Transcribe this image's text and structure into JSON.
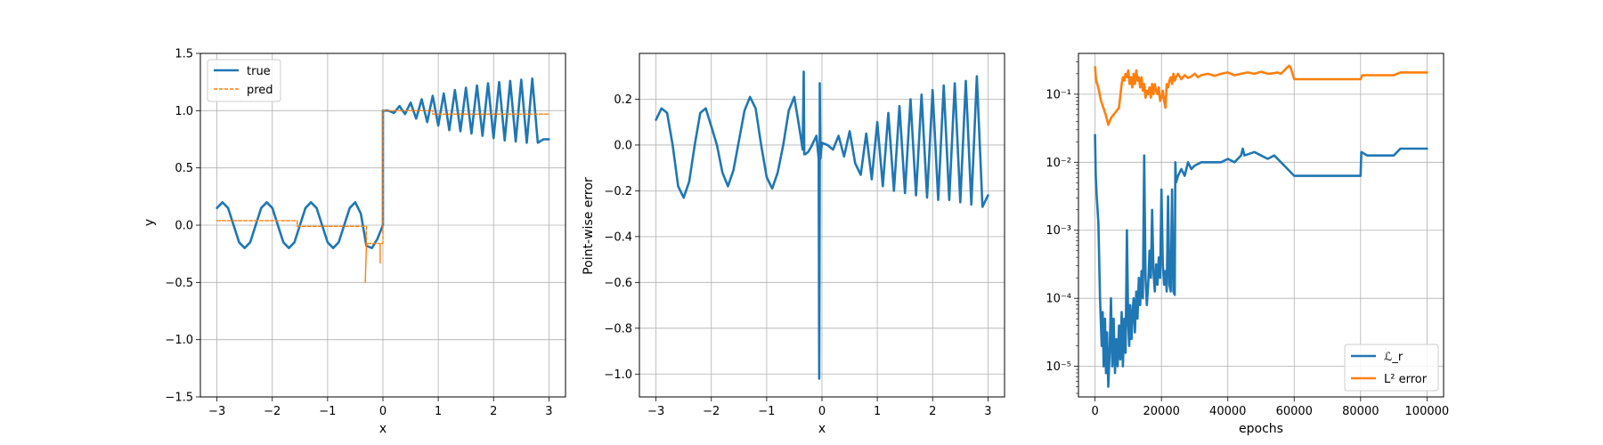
{
  "chart_data": [
    {
      "type": "line",
      "xlabel": "x",
      "ylabel": "y",
      "xlim": [
        -3.3,
        3.3
      ],
      "ylim": [
        -1.5,
        1.5
      ],
      "xticks": [
        -3,
        -2,
        -1,
        0,
        1,
        2,
        3
      ],
      "xtick_labels": [
        "−3",
        "−2",
        "−1",
        "0",
        "1",
        "2",
        "3"
      ],
      "yticks": [
        -1.5,
        -1.0,
        -0.5,
        0.0,
        0.5,
        1.0,
        1.5
      ],
      "ytick_labels": [
        "−1.5",
        "−1.0",
        "−0.5",
        "0.0",
        "0.5",
        "1.0",
        "1.5"
      ],
      "grid": true,
      "legend": "upper-left",
      "series": [
        {
          "name": "true",
          "color": "#1f77b4",
          "style": "solid",
          "x": [
            -3.0,
            -2.9,
            -2.8,
            -2.7,
            -2.6,
            -2.5,
            -2.4,
            -2.3,
            -2.2,
            -2.1,
            -2.0,
            -1.9,
            -1.8,
            -1.7,
            -1.6,
            -1.5,
            -1.4,
            -1.3,
            -1.2,
            -1.1,
            -1.0,
            -0.9,
            -0.8,
            -0.7,
            -0.6,
            -0.5,
            -0.4,
            -0.3,
            -0.2,
            -0.1,
            0.0,
            0.0,
            0.1,
            0.2,
            0.3,
            0.4,
            0.5,
            0.6,
            0.7,
            0.8,
            0.9,
            1.0,
            1.1,
            1.2,
            1.3,
            1.4,
            1.5,
            1.6,
            1.7,
            1.8,
            1.9,
            2.0,
            2.1,
            2.2,
            2.3,
            2.4,
            2.5,
            2.6,
            2.7,
            2.8,
            2.9,
            3.0
          ],
          "y": [
            0.15,
            0.2,
            0.15,
            0.0,
            -0.15,
            -0.2,
            -0.15,
            0.0,
            0.15,
            0.2,
            0.15,
            0.0,
            -0.15,
            -0.2,
            -0.15,
            0.0,
            0.15,
            0.2,
            0.15,
            0.0,
            -0.15,
            -0.2,
            -0.15,
            0.0,
            0.15,
            0.2,
            0.1,
            -0.18,
            -0.2,
            -0.12,
            0.0,
            1.0,
            1.0,
            0.98,
            1.04,
            0.97,
            1.07,
            0.93,
            1.1,
            0.9,
            1.13,
            0.87,
            1.15,
            0.83,
            1.18,
            0.82,
            1.2,
            0.8,
            1.22,
            0.78,
            1.24,
            0.76,
            1.25,
            0.74,
            1.26,
            0.73,
            1.27,
            0.72,
            1.28,
            0.72,
            0.75,
            0.75
          ]
        },
        {
          "name": "pred",
          "color": "#ff7f0e",
          "style": "dashed",
          "x": [
            -3.0,
            -1.55,
            -1.55,
            -0.3,
            -0.3,
            -0.32,
            -0.3,
            -0.3,
            -0.05,
            -0.05,
            -0.05,
            0.0,
            0.0,
            0.9,
            0.9,
            3.0
          ],
          "y": [
            0.04,
            0.04,
            -0.01,
            -0.01,
            -0.2,
            -0.5,
            -0.2,
            -0.16,
            -0.16,
            -0.33,
            -0.16,
            -0.16,
            1.0,
            1.0,
            0.97,
            0.97
          ]
        }
      ]
    },
    {
      "type": "line",
      "xlabel": "x",
      "ylabel": "Point-wise error",
      "xlim": [
        -3.3,
        3.3
      ],
      "ylim": [
        -1.1,
        0.4
      ],
      "xticks": [
        -3,
        -2,
        -1,
        0,
        1,
        2,
        3
      ],
      "xtick_labels": [
        "−3",
        "−2",
        "−1",
        "0",
        "1",
        "2",
        "3"
      ],
      "yticks": [
        -1.0,
        -0.8,
        -0.6,
        -0.4,
        -0.2,
        0.0,
        0.2
      ],
      "ytick_labels": [
        "−1.0",
        "−0.8",
        "−0.6",
        "−0.4",
        "−0.2",
        "0.0",
        "0.2"
      ],
      "grid": true,
      "series": [
        {
          "color": "#1f77b4",
          "style": "solid",
          "x": [
            -3.0,
            -2.9,
            -2.8,
            -2.7,
            -2.6,
            -2.5,
            -2.4,
            -2.3,
            -2.2,
            -2.1,
            -2.0,
            -1.9,
            -1.8,
            -1.7,
            -1.6,
            -1.5,
            -1.4,
            -1.3,
            -1.2,
            -1.1,
            -1.0,
            -0.9,
            -0.8,
            -0.7,
            -0.6,
            -0.5,
            -0.4,
            -0.35,
            -0.33,
            -0.32,
            -0.3,
            -0.25,
            -0.2,
            -0.1,
            -0.06,
            -0.05,
            -0.04,
            -0.04,
            -0.03,
            -0.03,
            0.0,
            0.1,
            0.2,
            0.3,
            0.4,
            0.5,
            0.6,
            0.7,
            0.8,
            0.9,
            1.0,
            1.1,
            1.2,
            1.3,
            1.4,
            1.5,
            1.6,
            1.7,
            1.8,
            1.9,
            2.0,
            2.1,
            2.2,
            2.3,
            2.4,
            2.5,
            2.6,
            2.7,
            2.8,
            2.9,
            3.0
          ],
          "y": [
            0.11,
            0.16,
            0.14,
            0.0,
            -0.18,
            -0.23,
            -0.16,
            0.0,
            0.14,
            0.16,
            0.08,
            0.0,
            -0.12,
            -0.18,
            -0.11,
            0.02,
            0.15,
            0.21,
            0.16,
            0.0,
            -0.14,
            -0.19,
            -0.12,
            0.0,
            0.15,
            0.21,
            0.06,
            -0.02,
            0.32,
            -0.04,
            -0.04,
            -0.03,
            -0.01,
            0.04,
            -0.06,
            -1.02,
            -0.06,
            0.27,
            0.01,
            -0.06,
            0.01,
            0.0,
            -0.02,
            0.04,
            -0.05,
            0.06,
            -0.08,
            -0.13,
            0.05,
            -0.15,
            0.1,
            -0.18,
            0.14,
            -0.2,
            0.17,
            -0.21,
            0.2,
            -0.22,
            0.22,
            -0.23,
            0.24,
            -0.24,
            0.26,
            -0.24,
            0.27,
            -0.25,
            0.28,
            -0.26,
            0.3,
            -0.27,
            -0.22
          ]
        }
      ]
    },
    {
      "type": "line",
      "xlabel": "epochs",
      "ylabel": "",
      "xlim": [
        -5000,
        105000
      ],
      "ylim_log10": [
        -5.45,
        -0.4
      ],
      "yscale": "log",
      "xticks": [
        0,
        20000,
        40000,
        60000,
        80000,
        100000
      ],
      "xtick_labels": [
        "0",
        "20000",
        "40000",
        "60000",
        "80000",
        "100000"
      ],
      "yticks_log10": [
        -5,
        -4,
        -3,
        -2,
        -1
      ],
      "ytick_labels": [
        "10⁻⁵",
        "10⁻⁴",
        "10⁻³",
        "10⁻²",
        "10⁻¹"
      ],
      "grid": true,
      "legend": "lower-right",
      "series": [
        {
          "name": "ℒ_r",
          "color": "#1f77b4",
          "x": [
            0,
            200,
            500,
            1000,
            1500,
            2000,
            2300,
            2600,
            3000,
            3300,
            3600,
            4000,
            4400,
            4800,
            5200,
            5600,
            6000,
            6400,
            6800,
            7200,
            7600,
            8000,
            8400,
            8800,
            9200,
            9600,
            10000,
            10300,
            10600,
            11000,
            11300,
            11600,
            12000,
            12400,
            12800,
            13200,
            13600,
            14000,
            14400,
            14800,
            15200,
            15600,
            16000,
            16400,
            16800,
            17200,
            17600,
            18000,
            18400,
            18800,
            19200,
            19600,
            20000,
            20400,
            20800,
            21200,
            21600,
            22000,
            22400,
            22800,
            23200,
            23600,
            24000,
            24200,
            24400,
            25000,
            26000,
            27000,
            28000,
            29000,
            30000,
            32000,
            35000,
            38000,
            40000,
            42000,
            44000,
            44500,
            45000,
            48000,
            50000,
            52000,
            54000,
            56000,
            58000,
            60000,
            70000,
            80000,
            80200,
            82000,
            90000,
            92000,
            100000
          ],
          "y_log10": [
            -1.6,
            -2.2,
            -2.5,
            -2.9,
            -4.0,
            -4.7,
            -4.2,
            -5.0,
            -4.3,
            -5.1,
            -4.5,
            -5.3,
            -4.8,
            -4.0,
            -5.0,
            -4.3,
            -5.1,
            -4.6,
            -5.0,
            -4.4,
            -4.9,
            -4.2,
            -5.0,
            -4.3,
            -4.8,
            -3.0,
            -4.4,
            -4.7,
            -4.1,
            -4.6,
            -4.2,
            -4.0,
            -4.5,
            -3.9,
            -4.3,
            -3.7,
            -4.1,
            -3.6,
            -4.0,
            -1.9,
            -3.7,
            -4.1,
            -3.8,
            -3.3,
            -3.7,
            -2.7,
            -3.6,
            -3.9,
            -3.5,
            -3.8,
            -3.4,
            -3.7,
            -2.4,
            -3.5,
            -3.8,
            -3.6,
            -3.9,
            -2.5,
            -3.8,
            -3.9,
            -2.4,
            -3.9,
            -3.95,
            -2.0,
            -2.3,
            -2.2,
            -2.1,
            -2.2,
            -2.0,
            -2.1,
            -2.05,
            -2.0,
            -2.0,
            -2.0,
            -1.95,
            -2.0,
            -1.9,
            -1.8,
            -1.9,
            -1.85,
            -1.9,
            -1.95,
            -1.9,
            -2.0,
            -2.1,
            -2.2,
            -2.2,
            -2.2,
            -1.85,
            -1.9,
            -1.9,
            -1.8,
            -1.8
          ]
        },
        {
          "name": "L² error",
          "color": "#ff7f0e",
          "x": [
            0,
            300,
            700,
            1200,
            1800,
            2500,
            3200,
            4000,
            4800,
            5600,
            6400,
            7200,
            8000,
            8400,
            8800,
            9200,
            9600,
            10000,
            10400,
            10800,
            11200,
            11600,
            12000,
            12400,
            12800,
            13200,
            13600,
            14000,
            14400,
            14800,
            15200,
            15600,
            16000,
            16400,
            16800,
            17200,
            17600,
            18000,
            18400,
            18800,
            19200,
            19600,
            20000,
            20400,
            20800,
            21200,
            21600,
            22000,
            22400,
            22800,
            23200,
            23600,
            24000,
            24400,
            25000,
            26000,
            27000,
            28000,
            29000,
            30000,
            31000,
            32000,
            34000,
            36000,
            38000,
            40000,
            42000,
            44000,
            46000,
            48000,
            50000,
            52000,
            54000,
            55000,
            56000,
            58000,
            58500,
            59000,
            60000,
            70000,
            80000,
            80500,
            82000,
            90000,
            92000,
            100000
          ],
          "y_log10": [
            -0.6,
            -0.8,
            -0.85,
            -0.95,
            -1.1,
            -1.2,
            -1.3,
            -1.45,
            -1.35,
            -1.3,
            -1.25,
            -1.2,
            -0.85,
            -0.75,
            -0.8,
            -0.7,
            -0.75,
            -0.65,
            -0.85,
            -0.75,
            -0.9,
            -0.7,
            -0.85,
            -0.65,
            -0.8,
            -0.75,
            -0.9,
            -0.75,
            -0.95,
            -0.85,
            -1.05,
            -0.95,
            -1.0,
            -0.9,
            -1.05,
            -0.85,
            -1.0,
            -0.85,
            -0.95,
            -1.0,
            -0.9,
            -1.1,
            -1.05,
            -0.95,
            -1.1,
            -1.2,
            -0.85,
            -0.9,
            -0.8,
            -0.75,
            -0.85,
            -0.7,
            -0.8,
            -0.75,
            -0.7,
            -0.78,
            -0.72,
            -0.76,
            -0.74,
            -0.7,
            -0.75,
            -0.72,
            -0.7,
            -0.73,
            -0.7,
            -0.68,
            -0.72,
            -0.7,
            -0.68,
            -0.7,
            -0.67,
            -0.7,
            -0.69,
            -0.68,
            -0.7,
            -0.6,
            -0.58,
            -0.62,
            -0.78,
            -0.78,
            -0.78,
            -0.72,
            -0.72,
            -0.72,
            -0.68,
            -0.68
          ]
        }
      ]
    }
  ]
}
